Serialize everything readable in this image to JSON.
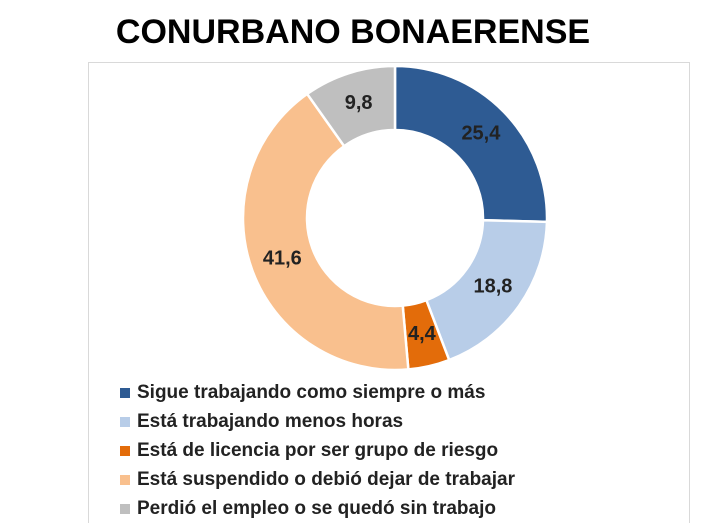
{
  "chart_data": {
    "type": "donut",
    "title": "CONURBANO BONAERENSE",
    "categories": [
      "Sigue trabajando como siempre o más",
      "Está trabajando menos horas",
      "Está de licencia por ser grupo de riesgo",
      "Está suspendido o debió dejar de trabajar",
      "Perdió el empleo o se quedó sin trabajo"
    ],
    "values": [
      25.4,
      18.8,
      4.4,
      41.6,
      9.8
    ],
    "value_labels": [
      "25,4",
      "18,8",
      "4,4",
      "41,6",
      "9,8"
    ],
    "colors": [
      "#2e5b93",
      "#b8cde8",
      "#e36c0a",
      "#f9c08e",
      "#bfbfbf"
    ]
  }
}
